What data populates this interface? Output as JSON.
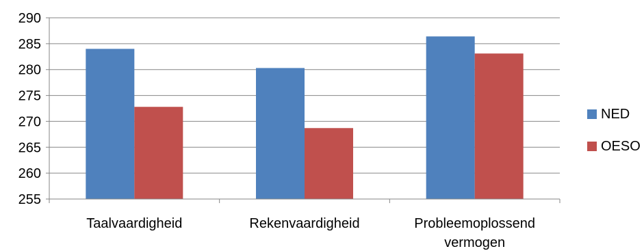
{
  "chart_data": {
    "type": "bar",
    "title": "",
    "xlabel": "",
    "ylabel": "",
    "categories": [
      [
        "Taalvaardigheid"
      ],
      [
        "Rekenvaardigheid"
      ],
      [
        "Probleemoplossend",
        "vermogen"
      ]
    ],
    "series": [
      {
        "name": "NED",
        "color": "#4F81BD",
        "values": [
          284,
          280.3,
          286.4
        ]
      },
      {
        "name": "OESO",
        "color": "#C0504D",
        "values": [
          272.8,
          268.7,
          283.1
        ]
      }
    ],
    "ylim": [
      255,
      290
    ],
    "yticks": [
      255,
      260,
      265,
      270,
      275,
      280,
      285,
      290
    ],
    "grid": true,
    "legend_position": "right"
  }
}
